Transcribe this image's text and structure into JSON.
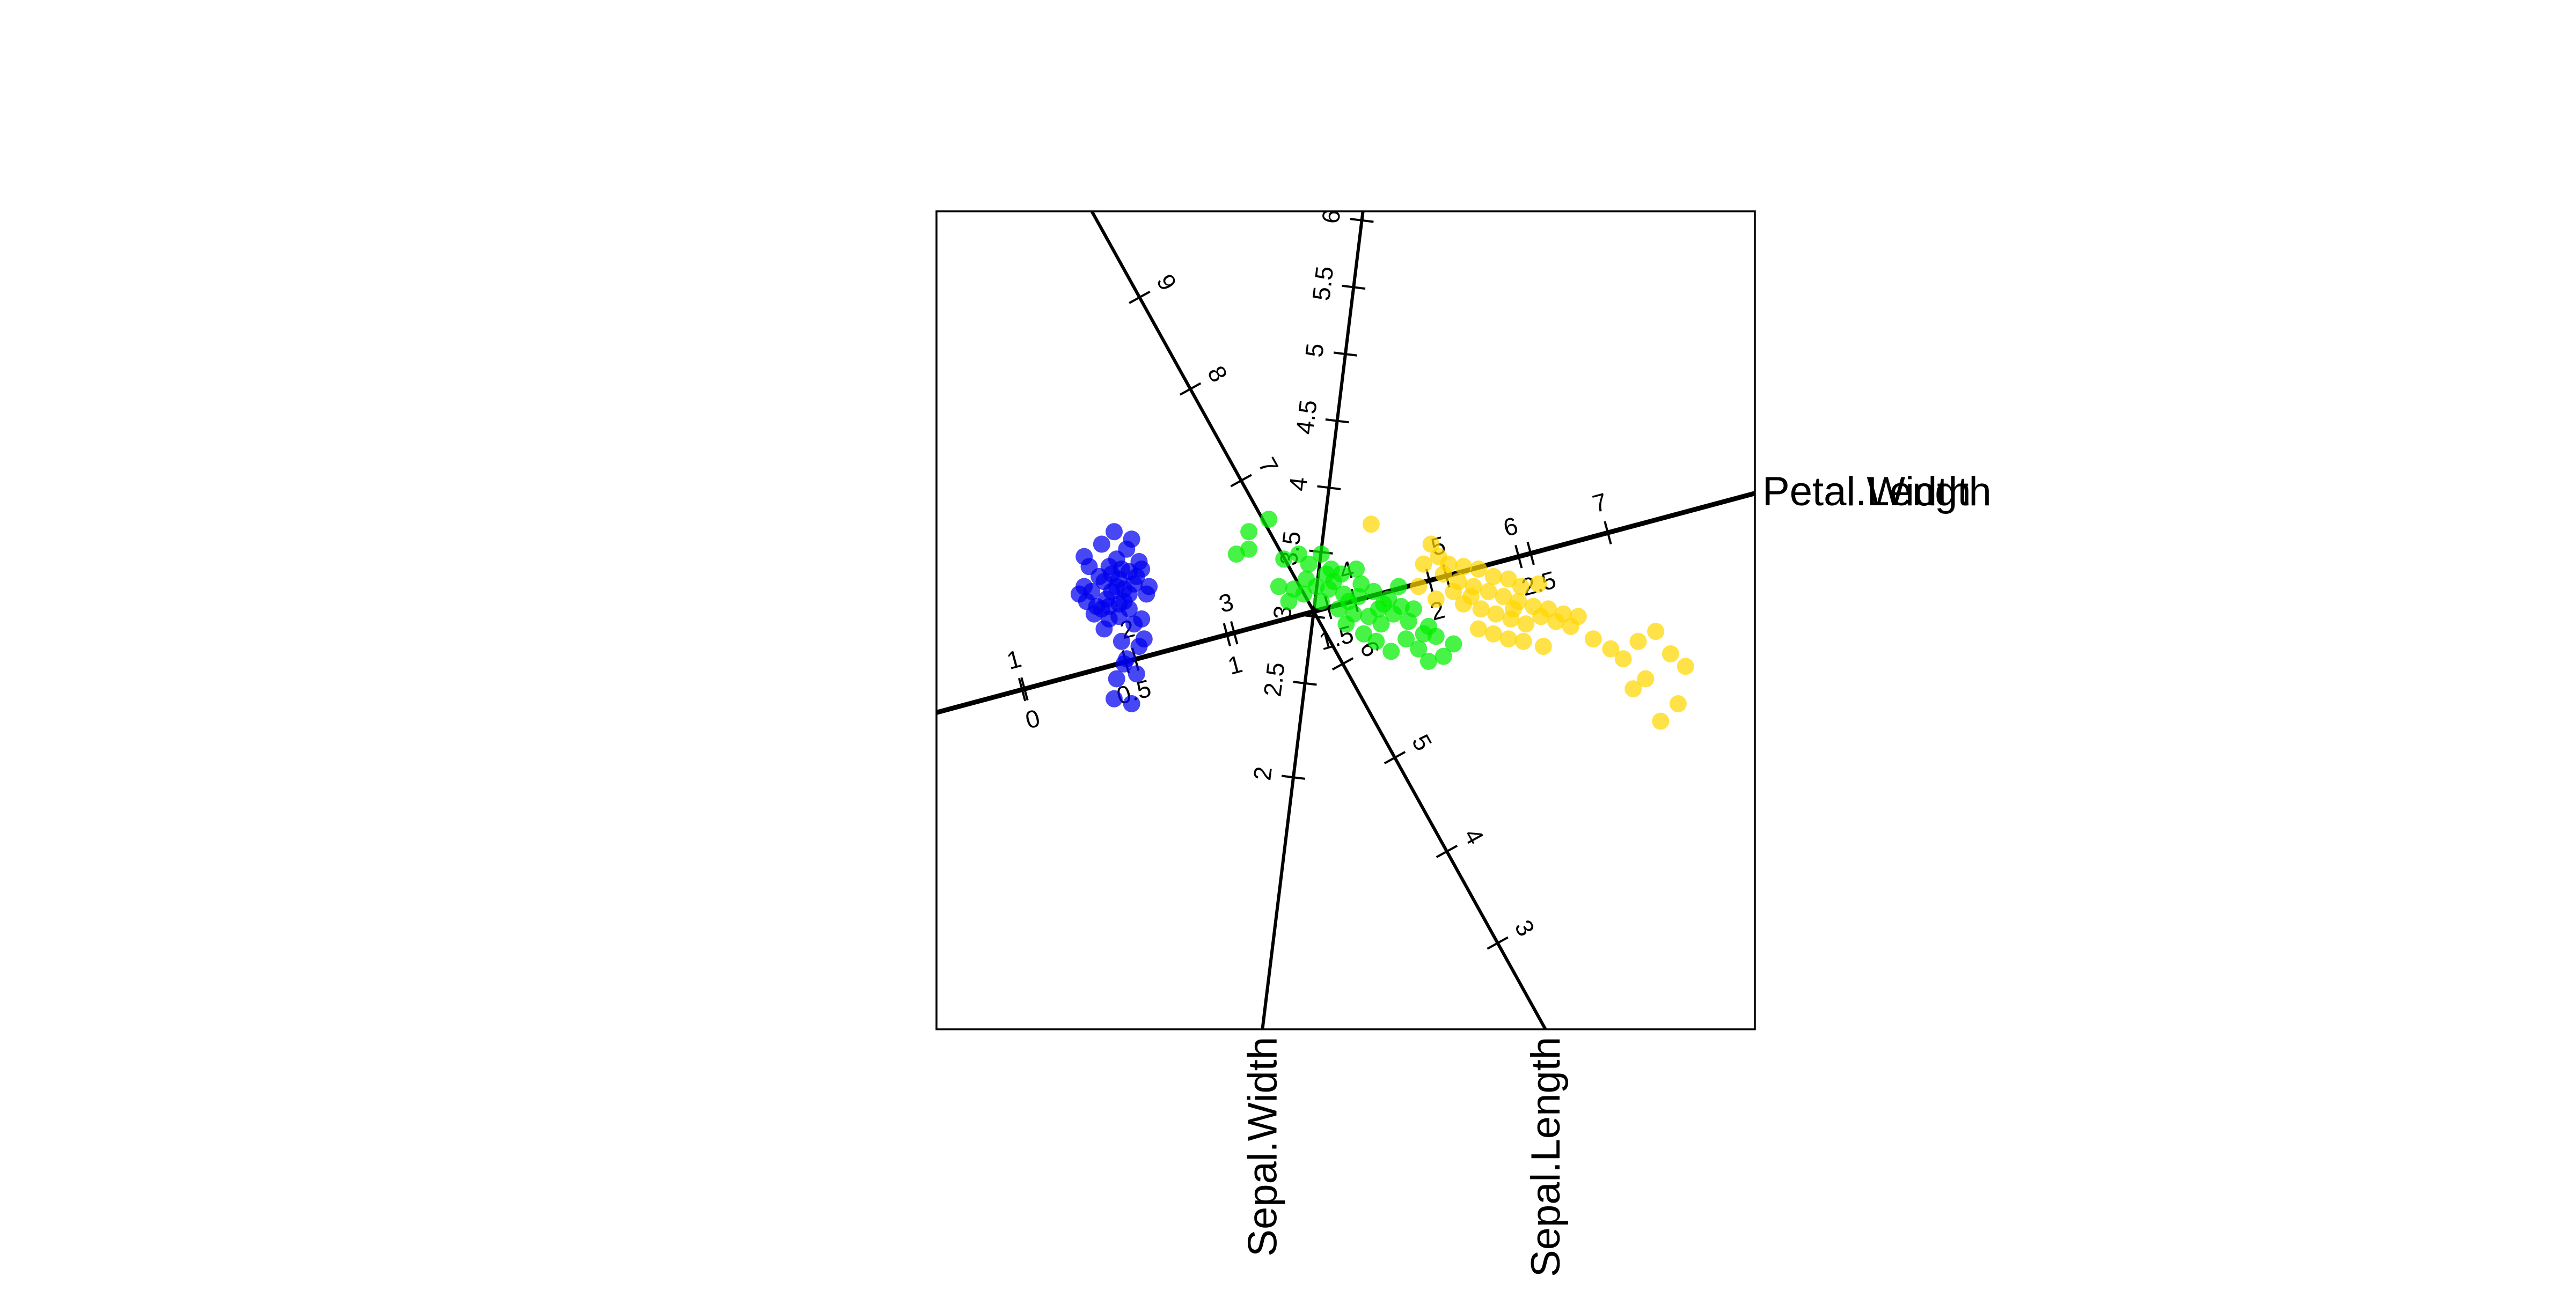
{
  "chart_data": {
    "type": "scatter",
    "title": "",
    "xlabel": "",
    "ylabel": "",
    "grid": false,
    "legend": "none",
    "point_opacity": 0.72,
    "series": [
      {
        "color": "#0000ee",
        "points": [
          [
            -4.55,
            0.2
          ],
          [
            -4.35,
            0.1
          ],
          [
            -4.2,
            0.6
          ],
          [
            -4.05,
            0.4
          ],
          [
            -3.9,
            0.15
          ],
          [
            -3.8,
            0.45
          ],
          [
            -3.7,
            0.05
          ],
          [
            -3.6,
            0.55
          ],
          [
            -4.3,
            0.7
          ],
          [
            -4.1,
            0.9
          ],
          [
            -3.95,
            1.05
          ],
          [
            -3.85,
            0.85
          ],
          [
            -3.75,
            1.25
          ],
          [
            -4.25,
            1.35
          ],
          [
            -4.0,
            1.6
          ],
          [
            -4.5,
            0.9
          ],
          [
            -4.6,
            1.1
          ],
          [
            -3.65,
            1.45
          ],
          [
            -3.5,
            1.0
          ],
          [
            -3.55,
            0.7
          ],
          [
            -4.15,
            0.25
          ],
          [
            -3.9,
            0.65
          ],
          [
            -3.7,
            0.8
          ],
          [
            -4.05,
            0.75
          ],
          [
            -3.8,
            0.2
          ],
          [
            -3.45,
            0.85
          ],
          [
            -4.7,
            0.35
          ],
          [
            -3.6,
            -0.25
          ],
          [
            -3.85,
            -0.6
          ],
          [
            -4.2,
            -0.35
          ],
          [
            -3.5,
            -0.7
          ],
          [
            -3.75,
            -0.95
          ],
          [
            -3.4,
            -0.55
          ],
          [
            -3.55,
            -1.25
          ],
          [
            -3.95,
            -1.35
          ],
          [
            -4.0,
            -1.75
          ],
          [
            -3.65,
            -1.85
          ],
          [
            -4.4,
            -0.05
          ],
          [
            -3.35,
            0.35
          ],
          [
            -3.3,
            0.5
          ],
          [
            -4.6,
            0.5
          ],
          [
            -3.9,
            -0.1
          ],
          [
            -4.1,
            0.1
          ],
          [
            -3.7,
            0.35
          ],
          [
            -4.25,
            0.05
          ],
          [
            -3.45,
            -0.15
          ],
          [
            -4.45,
            0.4
          ],
          [
            -3.8,
            -1.05
          ],
          [
            -3.95,
            0.5
          ],
          [
            -4.1,
            -0.15
          ]
        ]
      },
      {
        "color": "#00ee00",
        "points": [
          [
            -0.9,
            1.85
          ],
          [
            -1.3,
            1.6
          ],
          [
            -1.55,
            1.15
          ],
          [
            -1.3,
            1.25
          ],
          [
            -0.6,
            1.05
          ],
          [
            -0.3,
            1.15
          ],
          [
            -0.1,
            0.95
          ],
          [
            0.15,
            1.15
          ],
          [
            0.35,
            0.85
          ],
          [
            0.55,
            0.75
          ],
          [
            0.85,
            0.85
          ],
          [
            -0.15,
            0.65
          ],
          [
            0.05,
            0.5
          ],
          [
            0.3,
            0.45
          ],
          [
            0.6,
            0.35
          ],
          [
            0.9,
            0.3
          ],
          [
            1.2,
            0.4
          ],
          [
            1.4,
            0.15
          ],
          [
            1.7,
            0.5
          ],
          [
            -0.4,
            0.45
          ],
          [
            0.15,
            0.2
          ],
          [
            0.5,
            0.05
          ],
          [
            0.8,
            -0.05
          ],
          [
            1.1,
            -0.1
          ],
          [
            1.35,
            -0.25
          ],
          [
            1.6,
            -0.05
          ],
          [
            1.9,
            -0.2
          ],
          [
            2.3,
            -0.3
          ],
          [
            1.0,
            -0.45
          ],
          [
            1.25,
            -0.6
          ],
          [
            1.55,
            -0.8
          ],
          [
            1.85,
            -0.55
          ],
          [
            2.1,
            -0.75
          ],
          [
            2.3,
            -1.0
          ],
          [
            2.6,
            -0.9
          ],
          [
            2.8,
            -0.65
          ],
          [
            0.7,
            0.2
          ],
          [
            0.4,
            0.6
          ],
          [
            -0.7,
            0.5
          ],
          [
            -0.5,
            0.2
          ],
          [
            0.25,
            0.75
          ],
          [
            0.95,
            0.55
          ],
          [
            1.5,
            0.25
          ],
          [
            2.0,
            0.05
          ],
          [
            2.45,
            -0.5
          ],
          [
            1.3,
            0.05
          ],
          [
            0.65,
            -0.25
          ],
          [
            2.2,
            -0.45
          ],
          [
            -0.2,
            0.35
          ],
          [
            1.75,
            0.1
          ]
        ]
      },
      {
        "color": "#ffd700",
        "points": [
          [
            1.15,
            1.75
          ],
          [
            2.35,
            1.35
          ],
          [
            2.5,
            1.1
          ],
          [
            2.7,
            0.95
          ],
          [
            3.0,
            0.9
          ],
          [
            3.3,
            0.85
          ],
          [
            3.6,
            0.7
          ],
          [
            3.9,
            0.65
          ],
          [
            4.15,
            0.5
          ],
          [
            4.5,
            0.55
          ],
          [
            2.2,
            0.95
          ],
          [
            2.6,
            0.75
          ],
          [
            2.9,
            0.6
          ],
          [
            3.2,
            0.5
          ],
          [
            3.5,
            0.4
          ],
          [
            3.8,
            0.3
          ],
          [
            4.1,
            0.2
          ],
          [
            4.4,
            0.1
          ],
          [
            4.7,
            0.05
          ],
          [
            5.0,
            -0.05
          ],
          [
            3.0,
            0.15
          ],
          [
            3.35,
            0.05
          ],
          [
            3.65,
            -0.05
          ],
          [
            3.95,
            -0.15
          ],
          [
            4.25,
            -0.25
          ],
          [
            4.55,
            -0.1
          ],
          [
            4.85,
            -0.2
          ],
          [
            5.15,
            -0.3
          ],
          [
            3.3,
            -0.35
          ],
          [
            3.6,
            -0.45
          ],
          [
            3.9,
            -0.55
          ],
          [
            4.2,
            -0.6
          ],
          [
            4.6,
            -0.7
          ],
          [
            5.6,
            -0.55
          ],
          [
            5.95,
            -0.75
          ],
          [
            6.2,
            -0.95
          ],
          [
            6.5,
            -0.6
          ],
          [
            6.85,
            -0.4
          ],
          [
            7.15,
            -0.85
          ],
          [
            7.45,
            -1.1
          ],
          [
            6.65,
            -1.35
          ],
          [
            6.4,
            -1.55
          ],
          [
            7.3,
            -1.85
          ],
          [
            6.95,
            -2.2
          ],
          [
            2.1,
            0.5
          ],
          [
            2.45,
            0.25
          ],
          [
            3.15,
            0.3
          ],
          [
            4.0,
            0.05
          ],
          [
            5.3,
            -0.1
          ],
          [
            2.8,
            0.4
          ]
        ]
      }
    ],
    "axes": [
      {
        "name": "Petal.Width",
        "dir": [
          0.9659,
          0.2588
        ],
        "heavy": true,
        "ticks": [
          {
            "label": "0",
            "t": -6.0
          },
          {
            "label": "0.5",
            "t": -3.9
          },
          {
            "label": "1",
            "t": -1.8
          },
          {
            "label": "1.5",
            "t": 0.3
          },
          {
            "label": "2",
            "t": 2.4
          },
          {
            "label": "2.5",
            "t": 4.5
          }
        ]
      },
      {
        "name": "Petal.Length",
        "dir": [
          0.9659,
          0.2588
        ],
        "heavy": true,
        "ticks": [
          {
            "label": "1",
            "t": -6.05
          },
          {
            "label": "2",
            "t": -3.7
          },
          {
            "label": "3",
            "t": -1.65
          },
          {
            "label": "4",
            "t": 0.85
          },
          {
            "label": "5",
            "t": 2.75
          },
          {
            "label": "6",
            "t": 4.25
          },
          {
            "label": "7",
            "t": 6.1
          }
        ]
      },
      {
        "name": "Sepal.Width",
        "dir": [
          -0.1219,
          -0.9925
        ],
        "heavy": false,
        "ticks": [
          {
            "label": "2",
            "t": 3.35
          },
          {
            "label": "2.5",
            "t": 1.45
          },
          {
            "label": "3",
            "t": 0.1
          },
          {
            "label": "3.5",
            "t": -1.2
          },
          {
            "label": "4",
            "t": -2.5
          },
          {
            "label": "4.5",
            "t": -3.85
          },
          {
            "label": "5",
            "t": -5.2
          },
          {
            "label": "5.5",
            "t": -6.55
          },
          {
            "label": "6",
            "t": -7.9
          }
        ]
      },
      {
        "name": "Sepal.Length",
        "dir": [
          0.4848,
          -0.8746
        ],
        "heavy": false,
        "ticks": [
          {
            "label": "3",
            "t": 7.6
          },
          {
            "label": "4",
            "t": 5.5
          },
          {
            "label": "5",
            "t": 3.35
          },
          {
            "label": "6",
            "t": 1.2
          },
          {
            "label": "7",
            "t": -3.0
          },
          {
            "label": "8",
            "t": -5.1
          },
          {
            "label": "9",
            "t": -7.2
          }
        ]
      }
    ]
  }
}
